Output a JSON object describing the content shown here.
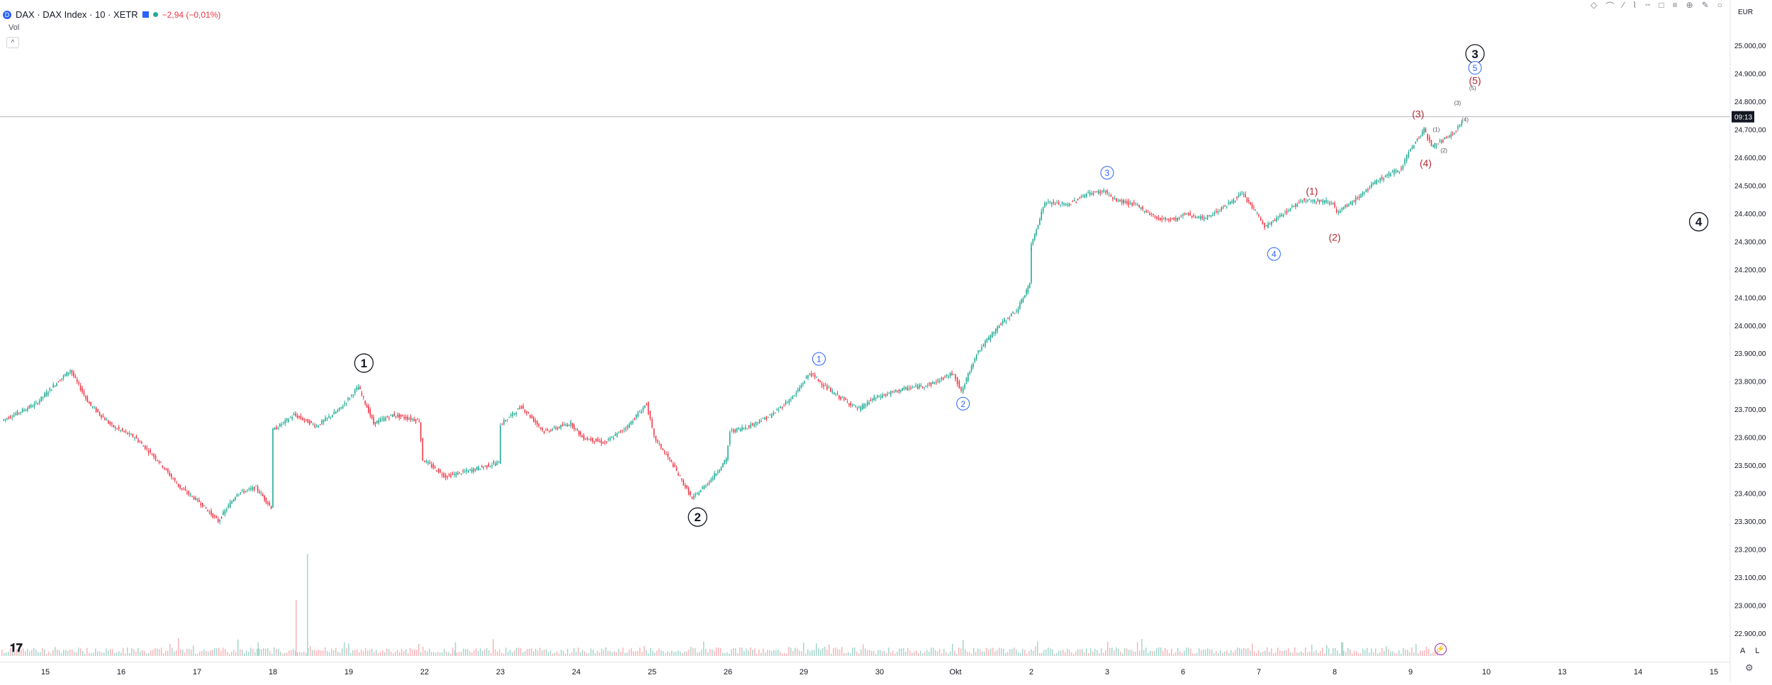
{
  "header": {
    "symbol_badge": "D",
    "title": "DAX · DAX Index · 10 · XETR",
    "change": "−2,94 (−0,01%)",
    "volume_label": "Vol"
  },
  "price_scale": {
    "currency": "EUR",
    "current_price_tag": "09:13"
  },
  "bottom_right": {
    "auto_label": "A",
    "log_label": "L"
  },
  "colors": {
    "up": "#22ab94",
    "down": "#f23645",
    "wave_major": "#131722",
    "wave_minor": "#2962ff",
    "wave_sub": "#b22833",
    "grid_line": "#b2b5be"
  },
  "icons": [
    "tradingview-logo-icon",
    "settings-icon",
    "collapse-chevron-icon",
    "lightning-icon"
  ],
  "chart_data": {
    "type": "candlestick",
    "timeframe": "10",
    "y_ticks": [
      "25.000,00",
      "24.900,00",
      "24.800,00",
      "24.700,00",
      "24.600,00",
      "24.500,00",
      "24.400,00",
      "24.300,00",
      "24.200,00",
      "24.100,00",
      "24.000,00",
      "23.900,00",
      "23.800,00",
      "23.700,00",
      "23.600,00",
      "23.500,00",
      "23.400,00",
      "23.300,00",
      "23.200,00",
      "23.100,00",
      "23.000,00",
      "22.900,00"
    ],
    "y_tick_values": [
      25000,
      24900,
      24800,
      24700,
      24600,
      24500,
      24400,
      24300,
      24200,
      24100,
      24000,
      23900,
      23800,
      23700,
      23600,
      23500,
      23400,
      23300,
      23200,
      23100,
      23000,
      22900
    ],
    "ylim": [
      22880,
      25080
    ],
    "x_ticks": [
      "15",
      "16",
      "17",
      "18",
      "19",
      "22",
      "23",
      "24",
      "25",
      "26",
      "29",
      "30",
      "Okt",
      "2",
      "3",
      "6",
      "7",
      "8",
      "9",
      "10",
      "13",
      "14",
      "15"
    ],
    "x_tick_index": [
      0,
      1,
      2,
      3,
      4,
      5,
      6,
      7,
      8,
      9,
      10,
      11,
      12,
      13,
      14,
      15,
      16,
      17,
      18,
      19,
      20,
      21,
      22
    ],
    "price_path": [
      [
        -0.55,
        23660
      ],
      [
        -0.1,
        23720
      ],
      [
        0.15,
        23790
      ],
      [
        0.35,
        23840
      ],
      [
        0.6,
        23720
      ],
      [
        0.9,
        23640
      ],
      [
        1.2,
        23600
      ],
      [
        1.5,
        23520
      ],
      [
        1.8,
        23420
      ],
      [
        2.05,
        23370
      ],
      [
        2.3,
        23300
      ],
      [
        2.55,
        23400
      ],
      [
        2.8,
        23420
      ],
      [
        3.0,
        23350
      ],
      [
        3.0,
        23620
      ],
      [
        3.3,
        23680
      ],
      [
        3.6,
        23640
      ],
      [
        3.9,
        23700
      ],
      [
        4.15,
        23780
      ],
      [
        4.35,
        23650
      ],
      [
        4.6,
        23680
      ],
      [
        4.95,
        23660
      ],
      [
        5.0,
        23520
      ],
      [
        5.3,
        23460
      ],
      [
        5.6,
        23480
      ],
      [
        6.0,
        23510
      ],
      [
        6.0,
        23640
      ],
      [
        6.3,
        23710
      ],
      [
        6.6,
        23620
      ],
      [
        6.95,
        23650
      ],
      [
        7.1,
        23600
      ],
      [
        7.4,
        23580
      ],
      [
        7.7,
        23640
      ],
      [
        7.95,
        23720
      ],
      [
        8.05,
        23600
      ],
      [
        8.3,
        23500
      ],
      [
        8.55,
        23380
      ],
      [
        8.8,
        23450
      ],
      [
        9.0,
        23520
      ],
      [
        9.05,
        23620
      ],
      [
        9.3,
        23640
      ],
      [
        9.6,
        23680
      ],
      [
        9.9,
        23750
      ],
      [
        10.1,
        23830
      ],
      [
        10.4,
        23760
      ],
      [
        10.75,
        23700
      ],
      [
        10.95,
        23740
      ],
      [
        11.3,
        23770
      ],
      [
        11.7,
        23790
      ],
      [
        12.0,
        23830
      ],
      [
        12.1,
        23760
      ],
      [
        12.3,
        23900
      ],
      [
        12.6,
        24000
      ],
      [
        12.85,
        24060
      ],
      [
        13.0,
        24150
      ],
      [
        13.0,
        24270
      ],
      [
        13.2,
        24440
      ],
      [
        13.5,
        24430
      ],
      [
        13.75,
        24470
      ],
      [
        14.0,
        24480
      ],
      [
        14.1,
        24450
      ],
      [
        14.4,
        24430
      ],
      [
        14.7,
        24380
      ],
      [
        14.95,
        24380
      ],
      [
        15.05,
        24400
      ],
      [
        15.3,
        24380
      ],
      [
        15.6,
        24430
      ],
      [
        15.8,
        24470
      ],
      [
        16.0,
        24400
      ],
      [
        16.1,
        24350
      ],
      [
        16.3,
        24390
      ],
      [
        16.6,
        24450
      ],
      [
        17.0,
        24440
      ],
      [
        17.05,
        24400
      ],
      [
        17.3,
        24450
      ],
      [
        17.6,
        24520
      ],
      [
        17.9,
        24560
      ],
      [
        18.0,
        24620
      ],
      [
        18.2,
        24700
      ],
      [
        18.3,
        24640
      ],
      [
        18.45,
        24660
      ],
      [
        18.6,
        24690
      ],
      [
        18.7,
        24720
      ]
    ],
    "volume_spikes": [
      [
        3.3,
        0.33
      ],
      [
        3.45,
        0.6
      ],
      [
        2.8,
        0.08
      ],
      [
        5.4,
        0.08
      ],
      [
        14.45,
        0.1
      ],
      [
        17.1,
        0.08
      ]
    ],
    "current_price": 24745,
    "waves": [
      {
        "label": "1",
        "x": 4.2,
        "y": 23865,
        "level": "major"
      },
      {
        "label": "2",
        "x": 8.6,
        "y": 23315,
        "level": "major"
      },
      {
        "label": "3",
        "x": 18.85,
        "y": 24970,
        "level": "major"
      },
      {
        "label": "4",
        "x": 21.8,
        "y": 24370,
        "level": "major"
      },
      {
        "label": "1",
        "x": 10.2,
        "y": 23880,
        "level": "minor"
      },
      {
        "label": "2",
        "x": 12.1,
        "y": 23720,
        "level": "minor"
      },
      {
        "label": "3",
        "x": 14.0,
        "y": 24545,
        "level": "minor"
      },
      {
        "label": "4",
        "x": 16.2,
        "y": 24255,
        "level": "minor"
      },
      {
        "label": "5",
        "x": 18.85,
        "y": 24920,
        "level": "minor"
      },
      {
        "label": "(1)",
        "x": 16.7,
        "y": 24480,
        "level": "sub"
      },
      {
        "label": "(2)",
        "x": 17.0,
        "y": 24315,
        "level": "sub"
      },
      {
        "label": "(3)",
        "x": 18.1,
        "y": 24755,
        "level": "sub"
      },
      {
        "label": "(4)",
        "x": 18.2,
        "y": 24580,
        "level": "sub"
      },
      {
        "label": "(5)",
        "x": 18.85,
        "y": 24875,
        "level": "sub"
      },
      {
        "label": "(1)",
        "x": 18.34,
        "y": 24700,
        "level": "tiny"
      },
      {
        "label": "(2)",
        "x": 18.44,
        "y": 24625,
        "level": "tiny"
      },
      {
        "label": "(3)",
        "x": 18.62,
        "y": 24795,
        "level": "tiny"
      },
      {
        "label": "(4)",
        "x": 18.72,
        "y": 24735,
        "level": "tiny"
      },
      {
        "label": "(5)",
        "x": 18.82,
        "y": 24848,
        "level": "tiny"
      }
    ]
  }
}
